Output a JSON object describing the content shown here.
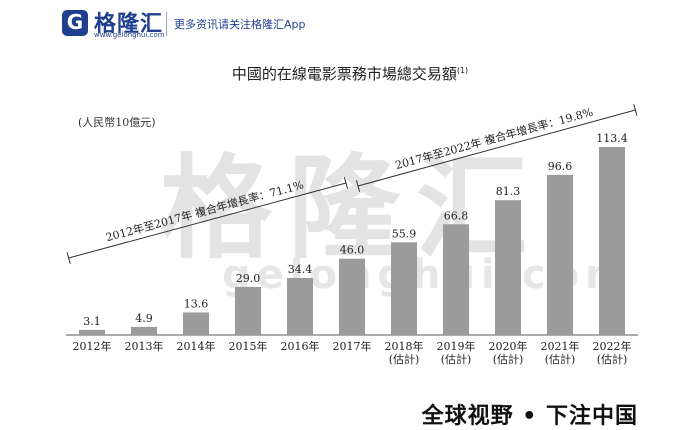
{
  "header": {
    "logo_letter": "G",
    "brand": "格隆汇",
    "brand_url": "www.gelonghui.com",
    "tagline": "更多资讯请关注格隆汇App",
    "brand_color": "#1f3f8f"
  },
  "watermark": {
    "text": "格隆汇",
    "url": "gelonghui.com"
  },
  "footer": {
    "slogan": "全球视野 • 下注中国"
  },
  "chart_data": {
    "type": "bar",
    "title": "中國的在線電影票務市場總交易額",
    "title_note": "(1)",
    "ylabel": "(人民幣10億元)",
    "categories": [
      "2012年",
      "2013年",
      "2014年",
      "2015年",
      "2016年",
      "2017年",
      "2018年\n(估計)",
      "2019年\n(估計)",
      "2020年\n(估計)",
      "2021年\n(估計)",
      "2022年\n(估計)"
    ],
    "values": [
      3.1,
      4.9,
      13.6,
      29.0,
      34.4,
      46.0,
      55.9,
      66.8,
      81.3,
      96.6,
      113.4
    ],
    "value_labels": [
      "3.1",
      "4.9",
      "13.6",
      "29.0",
      "34.4",
      "46.0",
      "55.9",
      "66.8",
      "81.3",
      "96.6",
      "113.4"
    ],
    "ylim": [
      0,
      113.4
    ],
    "bar_color": "#9b9b9b",
    "grid": false,
    "annotations": [
      {
        "text": "2012年至2017年 複合年增長率：71.1%",
        "from": "2012年",
        "to": "2017年"
      },
      {
        "text": "2017年至2022年 複合年增長率：19.8%",
        "from": "2017年",
        "to": "2022年"
      }
    ]
  }
}
